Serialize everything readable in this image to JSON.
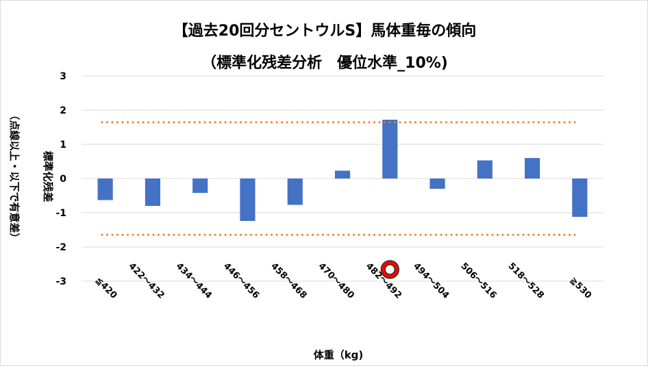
{
  "chart_data": {
    "type": "bar",
    "title": "【過去20回分セントウルS】馬体重毎の傾向",
    "subtitle": "（標準化残差分析　優位水準_10%)",
    "xlabel": "体重（kg)",
    "ylabel": "標準化残差",
    "ylabel_note": "（点線以上・以下で有意差）",
    "ylim": [
      -3,
      3
    ],
    "yticks": [
      3,
      2,
      1,
      0,
      -1,
      -2,
      -3
    ],
    "grid": true,
    "categories": [
      "≦420",
      "422～432",
      "434～444",
      "446～456",
      "458～468",
      "470～480",
      "482～492",
      "494～504",
      "506～516",
      "518～528",
      "≧530"
    ],
    "values": [
      -0.63,
      -0.8,
      -0.42,
      -1.24,
      -0.77,
      0.23,
      1.72,
      -0.3,
      0.53,
      0.6,
      -1.12
    ],
    "thresholds": [
      1.645,
      -1.645
    ],
    "highlight": {
      "category": "482～492",
      "marker": "circle"
    },
    "colors": {
      "bar": "#4472C4",
      "threshold": "#ED7D31",
      "grid": "#d9d9d9",
      "marker_fill": "#FF0000"
    }
  }
}
